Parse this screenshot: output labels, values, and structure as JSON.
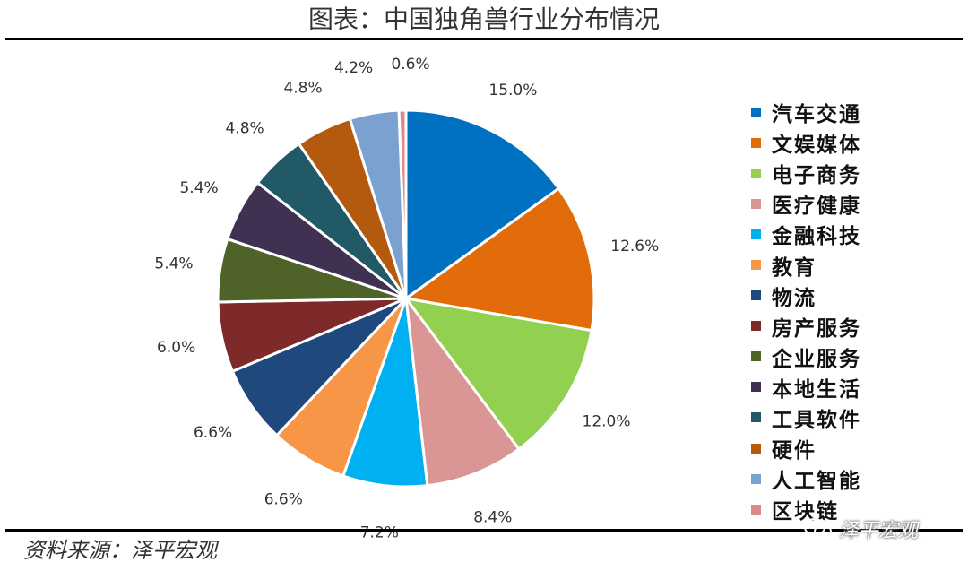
{
  "title": "图表：中国独角兽行业分布情况",
  "source": "资料来源：泽平宏观",
  "watermark": "泽平宏观",
  "watermark_icon": "wechat-icon",
  "chart_data": {
    "type": "pie",
    "title": "图表：中国独角兽行业分布情况",
    "legend_position": "right",
    "start_angle": "12 o'clock, clockwise",
    "slices": [
      {
        "label": "汽车交通",
        "value": 15.0,
        "display": "15.0%",
        "color": "#0070C0"
      },
      {
        "label": "文娱媒体",
        "value": 12.6,
        "display": "12.6%",
        "color": "#E36C0A"
      },
      {
        "label": "电子商务",
        "value": 12.0,
        "display": "12.0%",
        "color": "#92D050"
      },
      {
        "label": "医疗健康",
        "value": 8.4,
        "display": "8.4%",
        "color": "#D99694"
      },
      {
        "label": "金融科技",
        "value": 7.2,
        "display": "7.2%",
        "color": "#00B0F0"
      },
      {
        "label": "教育",
        "value": 6.6,
        "display": "6.6%",
        "color": "#F79646"
      },
      {
        "label": "物流",
        "value": 6.6,
        "display": "6.6%",
        "color": "#1F497D"
      },
      {
        "label": "房产服务",
        "value": 6.0,
        "display": "6.0%",
        "color": "#7F2A2A"
      },
      {
        "label": "企业服务",
        "value": 5.4,
        "display": "5.4%",
        "color": "#4F6228"
      },
      {
        "label": "本地生活",
        "value": 5.4,
        "display": "5.4%",
        "color": "#403152"
      },
      {
        "label": "工具软件",
        "value": 4.8,
        "display": "4.8%",
        "color": "#215967"
      },
      {
        "label": "硬件",
        "value": 4.8,
        "display": "4.8%",
        "color": "#B45A0E"
      },
      {
        "label": "人工智能",
        "value": 4.2,
        "display": "4.2%",
        "color": "#7BA1D0"
      },
      {
        "label": "区块链",
        "value": 0.6,
        "display": "0.6%",
        "color": "#DA8C8C"
      }
    ]
  }
}
